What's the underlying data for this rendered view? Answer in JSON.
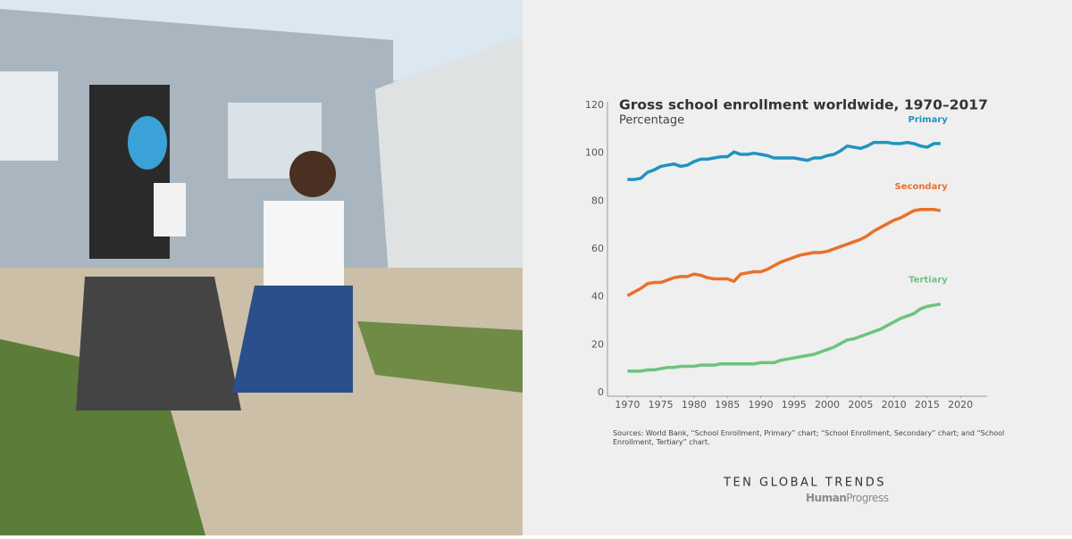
{
  "chart_data": {
    "type": "line",
    "title": "Gross school enrollment worldwide, 1970–2017",
    "subtitle": "Percentage",
    "x": [
      1970,
      1971,
      1972,
      1973,
      1974,
      1975,
      1976,
      1977,
      1978,
      1979,
      1980,
      1981,
      1982,
      1983,
      1984,
      1985,
      1986,
      1987,
      1988,
      1989,
      1990,
      1991,
      1992,
      1993,
      1994,
      1995,
      1996,
      1997,
      1998,
      1999,
      2000,
      2001,
      2002,
      2003,
      2004,
      2005,
      2006,
      2007,
      2008,
      2009,
      2010,
      2011,
      2012,
      2013,
      2014,
      2015,
      2016,
      2017
    ],
    "series": [
      {
        "name": "Primary",
        "color": "#1f94bf",
        "values": [
          89,
          89,
          89.5,
          92,
          93,
          94.5,
          95,
          95.5,
          94.5,
          95,
          96.5,
          97.5,
          97.5,
          98,
          98.5,
          98.5,
          100.5,
          99.5,
          99.5,
          100,
          99.5,
          99,
          98,
          98,
          98,
          98,
          97.5,
          97,
          98,
          98,
          99,
          99.5,
          101,
          103,
          102.5,
          102,
          103,
          104.5,
          104.5,
          104.5,
          104,
          104,
          104.5,
          104,
          103,
          102.5,
          104,
          104
        ]
      },
      {
        "name": "Secondary",
        "color": "#e8702a",
        "values": [
          40.5,
          42,
          43.5,
          45.5,
          46,
          46,
          47,
          48,
          48.5,
          48.5,
          49.5,
          49,
          48,
          47.5,
          47.5,
          47.5,
          46.5,
          49.5,
          50,
          50.5,
          50.5,
          51.5,
          53,
          54.5,
          55.5,
          56.5,
          57.5,
          58,
          58.5,
          58.5,
          59,
          60,
          61,
          62,
          63,
          64,
          65.5,
          67.5,
          69,
          70.5,
          72,
          73,
          74.5,
          76,
          76.5,
          76.5,
          76.5,
          76
        ]
      },
      {
        "name": "Tertiary",
        "color": "#6cc47d",
        "values": [
          9,
          9,
          9,
          9.5,
          9.5,
          10,
          10.5,
          10.5,
          11,
          11,
          11,
          11.5,
          11.5,
          11.5,
          12,
          12,
          12,
          12,
          12,
          12,
          12.5,
          12.5,
          12.5,
          13.5,
          14,
          14.5,
          15,
          15.5,
          16,
          17,
          18,
          19,
          20.5,
          22,
          22.5,
          23.5,
          24.5,
          25.5,
          26.5,
          28,
          29.5,
          31,
          32,
          33,
          35,
          36,
          36.5,
          37
        ]
      }
    ],
    "xlim": [
      1967,
      2024
    ],
    "xticks": [
      1970,
      1975,
      1980,
      1985,
      1990,
      1995,
      2000,
      2005,
      2010,
      2015,
      2020
    ],
    "ylim": [
      -1.5,
      120
    ],
    "yticks": [
      0,
      20,
      40,
      60,
      80,
      100,
      120
    ],
    "grid": false,
    "source": "Sources: World Bank, “School Enrollment, Primary” chart; “School Enrollment, Secondary” chart; and “School Enrollment, Tertiary” chart."
  },
  "footer": {
    "series_title": "TEN GLOBAL TRENDS",
    "brand_bold": "Human",
    "brand_light": "Progress"
  }
}
